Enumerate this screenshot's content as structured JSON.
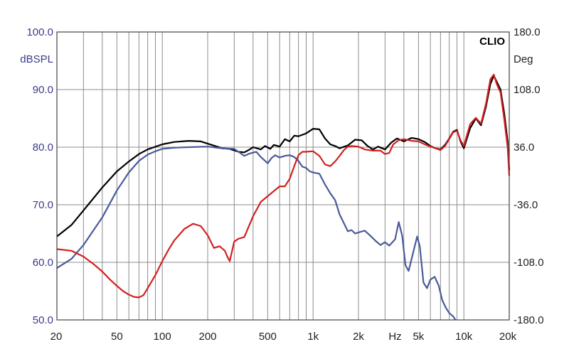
{
  "chart_data": {
    "type": "line",
    "brand": "CLIO",
    "left_axis": {
      "label": "dBSPL",
      "ylim": [
        50,
        100
      ],
      "ticks": [
        "100.0",
        "90.0",
        "80.0",
        "70.0",
        "60.0",
        "50.0"
      ],
      "color": "#3a3a8c"
    },
    "right_axis": {
      "label": "Deg",
      "ylim": [
        -180,
        180
      ],
      "ticks": [
        "180.0",
        "108.0",
        "36.0",
        "-36.0",
        "-108.0",
        "-180.0"
      ],
      "color": "#222222"
    },
    "x_axis": {
      "scale": "log",
      "xlim": [
        20,
        20000
      ],
      "unit_label": "Hz",
      "unit_position": 3500,
      "ticks": [
        {
          "value": 20,
          "label": "20"
        },
        {
          "value": 50,
          "label": "50"
        },
        {
          "value": 100,
          "label": "100"
        },
        {
          "value": 200,
          "label": "200"
        },
        {
          "value": 500,
          "label": "500"
        },
        {
          "value": 1000,
          "label": "1k"
        },
        {
          "value": 2000,
          "label": "2k"
        },
        {
          "value": 5000,
          "label": "5k"
        },
        {
          "value": 10000,
          "label": "10k"
        },
        {
          "value": 20000,
          "label": "20k"
        }
      ]
    },
    "grid": true,
    "series": [
      {
        "color": "#000000",
        "axis": "left",
        "points": [
          [
            20,
            64.5
          ],
          [
            25,
            66.5
          ],
          [
            30,
            69
          ],
          [
            40,
            73
          ],
          [
            50,
            75.8
          ],
          [
            60,
            77.5
          ],
          [
            70,
            78.8
          ],
          [
            80,
            79.6
          ],
          [
            100,
            80.5
          ],
          [
            120,
            80.9
          ],
          [
            150,
            81.1
          ],
          [
            180,
            81
          ],
          [
            200,
            80.6
          ],
          [
            250,
            79.8
          ],
          [
            280,
            79.7
          ],
          [
            320,
            79.2
          ],
          [
            350,
            79.1
          ],
          [
            380,
            79.6
          ],
          [
            400,
            80
          ],
          [
            450,
            79.6
          ],
          [
            480,
            80.2
          ],
          [
            520,
            79.7
          ],
          [
            550,
            80.4
          ],
          [
            600,
            80.1
          ],
          [
            650,
            81.4
          ],
          [
            700,
            81
          ],
          [
            750,
            82
          ],
          [
            800,
            81.9
          ],
          [
            900,
            82.4
          ],
          [
            1000,
            83.2
          ],
          [
            1100,
            83.1
          ],
          [
            1200,
            81.5
          ],
          [
            1300,
            80.5
          ],
          [
            1400,
            80.2
          ],
          [
            1500,
            79.8
          ],
          [
            1700,
            80.3
          ],
          [
            1900,
            81.3
          ],
          [
            2100,
            81.2
          ],
          [
            2300,
            80.2
          ],
          [
            2500,
            79.6
          ],
          [
            2700,
            80.1
          ],
          [
            3000,
            79.6
          ],
          [
            3300,
            80.8
          ],
          [
            3600,
            81.5
          ],
          [
            4000,
            81
          ],
          [
            4500,
            81.6
          ],
          [
            5000,
            81.4
          ],
          [
            5500,
            80.9
          ],
          [
            6000,
            80.2
          ],
          [
            6500,
            79.8
          ],
          [
            7000,
            79.6
          ],
          [
            7500,
            80.4
          ],
          [
            8000,
            81.5
          ],
          [
            8500,
            82.7
          ],
          [
            9000,
            83
          ],
          [
            9500,
            81
          ],
          [
            10000,
            79.8
          ],
          [
            11000,
            83.3
          ],
          [
            12000,
            85
          ],
          [
            13000,
            83.8
          ],
          [
            14000,
            87
          ],
          [
            15000,
            91
          ],
          [
            15800,
            92.4
          ],
          [
            16500,
            91.4
          ],
          [
            17500,
            90
          ],
          [
            18500,
            86
          ],
          [
            19500,
            81
          ],
          [
            20000,
            76
          ]
        ]
      },
      {
        "color": "#4a5a9c",
        "axis": "left",
        "points": [
          [
            20,
            59
          ],
          [
            25,
            60.6
          ],
          [
            30,
            63
          ],
          [
            40,
            67.8
          ],
          [
            50,
            72.5
          ],
          [
            60,
            75.6
          ],
          [
            70,
            77.6
          ],
          [
            80,
            78.7
          ],
          [
            90,
            79.3
          ],
          [
            100,
            79.7
          ],
          [
            120,
            79.9
          ],
          [
            150,
            80
          ],
          [
            200,
            80.1
          ],
          [
            250,
            79.8
          ],
          [
            300,
            79.7
          ],
          [
            350,
            78.5
          ],
          [
            380,
            78.9
          ],
          [
            420,
            79.2
          ],
          [
            450,
            78.3
          ],
          [
            500,
            77.2
          ],
          [
            530,
            78.1
          ],
          [
            560,
            78.6
          ],
          [
            600,
            78.2
          ],
          [
            650,
            78.5
          ],
          [
            700,
            78.6
          ],
          [
            750,
            78.3
          ],
          [
            800,
            77.6
          ],
          [
            850,
            76.6
          ],
          [
            900,
            76.4
          ],
          [
            950,
            75.8
          ],
          [
            1000,
            75.6
          ],
          [
            1100,
            75.4
          ],
          [
            1200,
            73.5
          ],
          [
            1300,
            72
          ],
          [
            1400,
            70.8
          ],
          [
            1500,
            68.3
          ],
          [
            1600,
            66.8
          ],
          [
            1700,
            65.4
          ],
          [
            1800,
            65.6
          ],
          [
            1900,
            65
          ],
          [
            2000,
            65.2
          ],
          [
            2200,
            65.5
          ],
          [
            2400,
            64.6
          ],
          [
            2600,
            63.7
          ],
          [
            2800,
            63
          ],
          [
            3000,
            63.5
          ],
          [
            3200,
            62.9
          ],
          [
            3500,
            64
          ],
          [
            3700,
            67
          ],
          [
            3900,
            64.6
          ],
          [
            4100,
            59.5
          ],
          [
            4300,
            58.5
          ],
          [
            4600,
            61.6
          ],
          [
            4900,
            64.5
          ],
          [
            5100,
            62.8
          ],
          [
            5400,
            56.5
          ],
          [
            5700,
            55.5
          ],
          [
            6000,
            57
          ],
          [
            6400,
            57.5
          ],
          [
            6800,
            56
          ],
          [
            7200,
            53.4
          ],
          [
            7600,
            52.1
          ],
          [
            8000,
            51.2
          ],
          [
            8500,
            50.6
          ],
          [
            8800,
            50
          ]
        ]
      },
      {
        "color": "#d42020",
        "axis": "left",
        "points": [
          [
            20,
            62.3
          ],
          [
            25,
            62
          ],
          [
            30,
            61
          ],
          [
            35,
            59.7
          ],
          [
            40,
            58.4
          ],
          [
            45,
            57
          ],
          [
            50,
            55.9
          ],
          [
            55,
            55
          ],
          [
            60,
            54.4
          ],
          [
            65,
            54
          ],
          [
            70,
            53.9
          ],
          [
            75,
            54.3
          ],
          [
            80,
            55.5
          ],
          [
            90,
            57.8
          ],
          [
            100,
            60.2
          ],
          [
            110,
            62.2
          ],
          [
            120,
            63.8
          ],
          [
            140,
            65.8
          ],
          [
            160,
            66.7
          ],
          [
            180,
            66.3
          ],
          [
            200,
            64.7
          ],
          [
            220,
            62.5
          ],
          [
            240,
            62.8
          ],
          [
            260,
            62
          ],
          [
            270,
            61
          ],
          [
            280,
            60.2
          ],
          [
            300,
            63.6
          ],
          [
            320,
            64.1
          ],
          [
            350,
            64.4
          ],
          [
            400,
            68
          ],
          [
            450,
            70.5
          ],
          [
            500,
            71.5
          ],
          [
            600,
            73.2
          ],
          [
            650,
            73.2
          ],
          [
            700,
            74.5
          ],
          [
            750,
            76.7
          ],
          [
            800,
            78.6
          ],
          [
            850,
            79.2
          ],
          [
            900,
            79.2
          ],
          [
            1000,
            79.3
          ],
          [
            1100,
            78.5
          ],
          [
            1200,
            77
          ],
          [
            1300,
            76.7
          ],
          [
            1400,
            77.5
          ],
          [
            1500,
            78.5
          ],
          [
            1600,
            79.5
          ],
          [
            1700,
            80.1
          ],
          [
            1800,
            80.2
          ],
          [
            2000,
            80.1
          ],
          [
            2200,
            79.6
          ],
          [
            2500,
            79.4
          ],
          [
            2800,
            79.4
          ],
          [
            3000,
            78.8
          ],
          [
            3200,
            79
          ],
          [
            3400,
            80.5
          ],
          [
            3700,
            81.2
          ],
          [
            4000,
            81.4
          ],
          [
            4500,
            81.1
          ],
          [
            5000,
            81
          ],
          [
            5500,
            80.5
          ],
          [
            6000,
            80.1
          ],
          [
            6500,
            79.8
          ],
          [
            7000,
            79.5
          ],
          [
            7500,
            80.2
          ],
          [
            8000,
            81.4
          ],
          [
            8500,
            82.6
          ],
          [
            9000,
            82.8
          ],
          [
            9500,
            81.2
          ],
          [
            10000,
            80.2
          ],
          [
            11000,
            84
          ],
          [
            12000,
            85.1
          ],
          [
            13000,
            84.1
          ],
          [
            14000,
            87.5
          ],
          [
            15000,
            91.8
          ],
          [
            15800,
            92.6
          ],
          [
            16500,
            91
          ],
          [
            17500,
            89.5
          ],
          [
            18500,
            85
          ],
          [
            19500,
            80
          ],
          [
            20000,
            75
          ]
        ]
      }
    ]
  }
}
